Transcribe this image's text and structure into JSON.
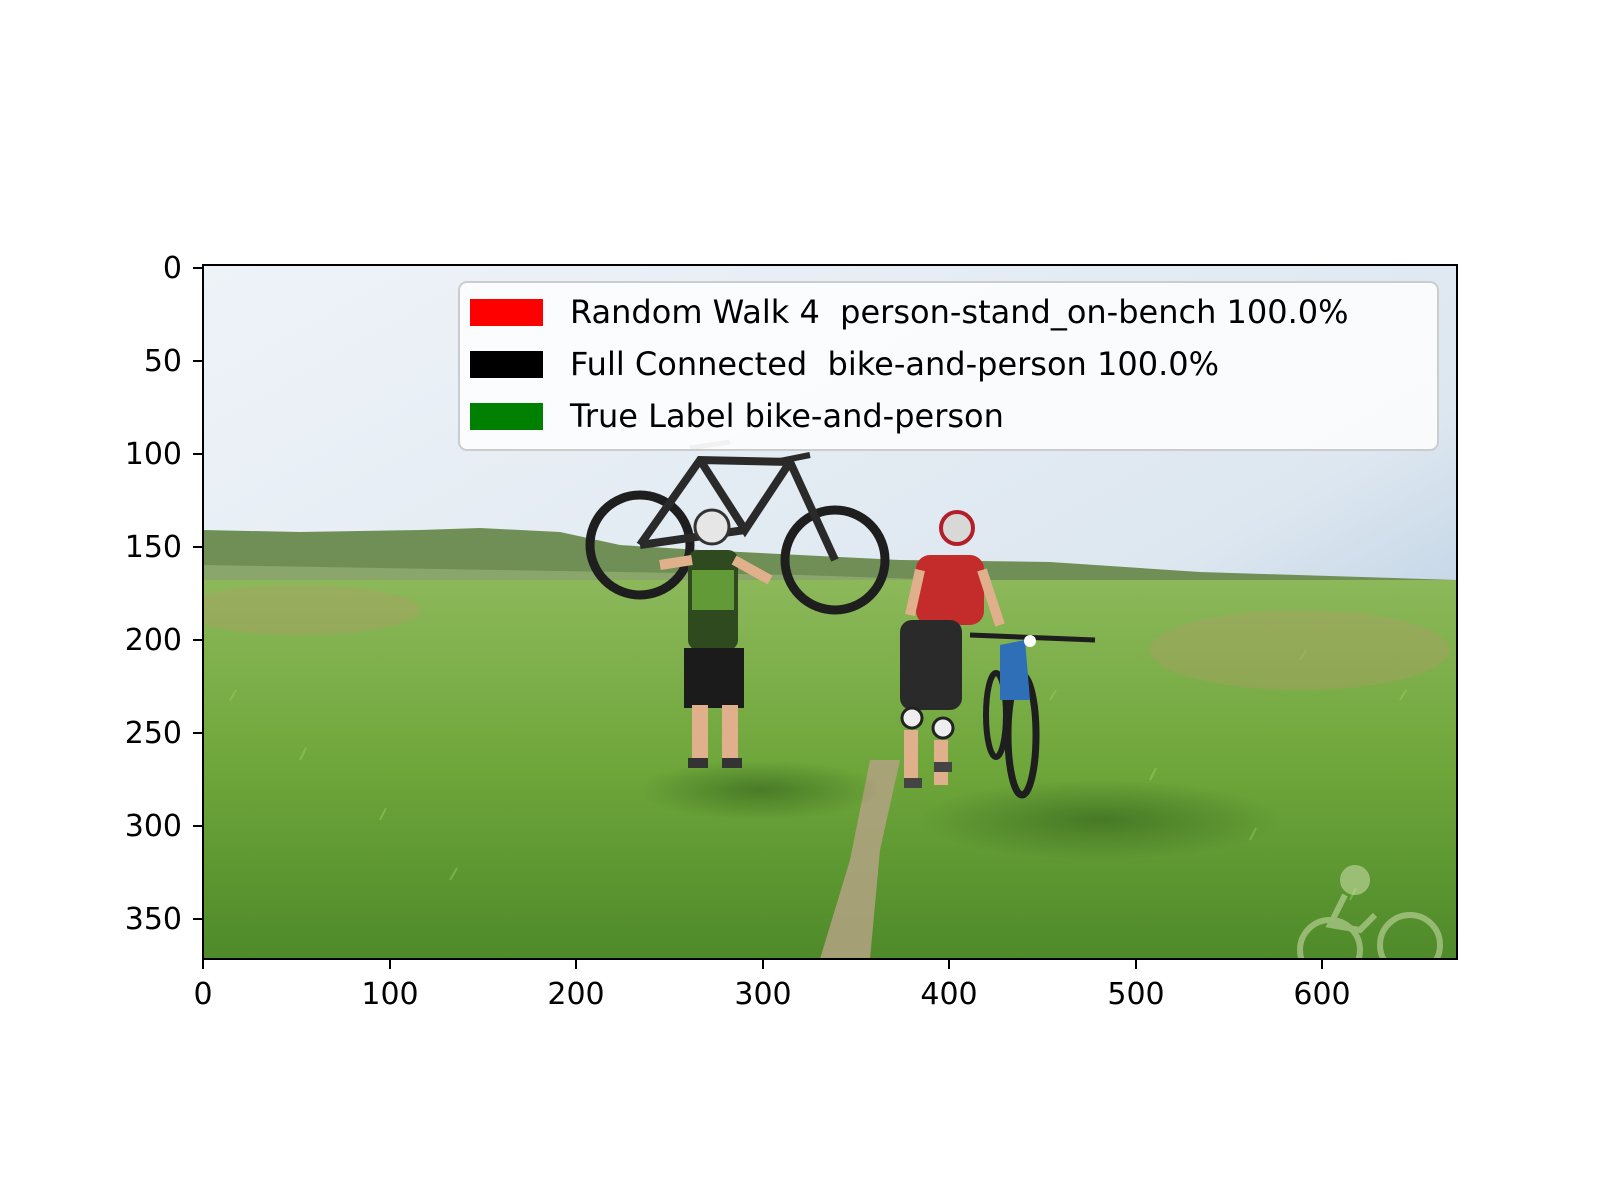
{
  "figure": {
    "x_axis": {
      "ticks": [
        "0",
        "100",
        "200",
        "300",
        "400",
        "500",
        "600"
      ],
      "range": [
        0,
        672
      ]
    },
    "y_axis": {
      "ticks": [
        "0",
        "50",
        "100",
        "150",
        "200",
        "250",
        "300",
        "350"
      ],
      "range": [
        0,
        372
      ],
      "inverted": true
    }
  },
  "legend": {
    "placement": "top-right",
    "entries": [
      {
        "label": "Random Walk 4  person-stand_on-bench 100.0%",
        "color": "#ff0000"
      },
      {
        "label": "Full Connected  bike-and-person 100.0%",
        "color": "#000000"
      },
      {
        "label": "True Label bike-and-person",
        "color": "#008000"
      }
    ]
  },
  "photo": {
    "scene": "two cyclists in grassy field, one carrying mountain bike overhead, one walking blue bike",
    "colors": {
      "sky_top": "#dfe9f2",
      "sky_right": "#8fb0d4",
      "hill": "#6a8a52",
      "grass_light": "#8fc24e",
      "grass_dark": "#4f8a2a",
      "path": "#b8a88a"
    }
  }
}
